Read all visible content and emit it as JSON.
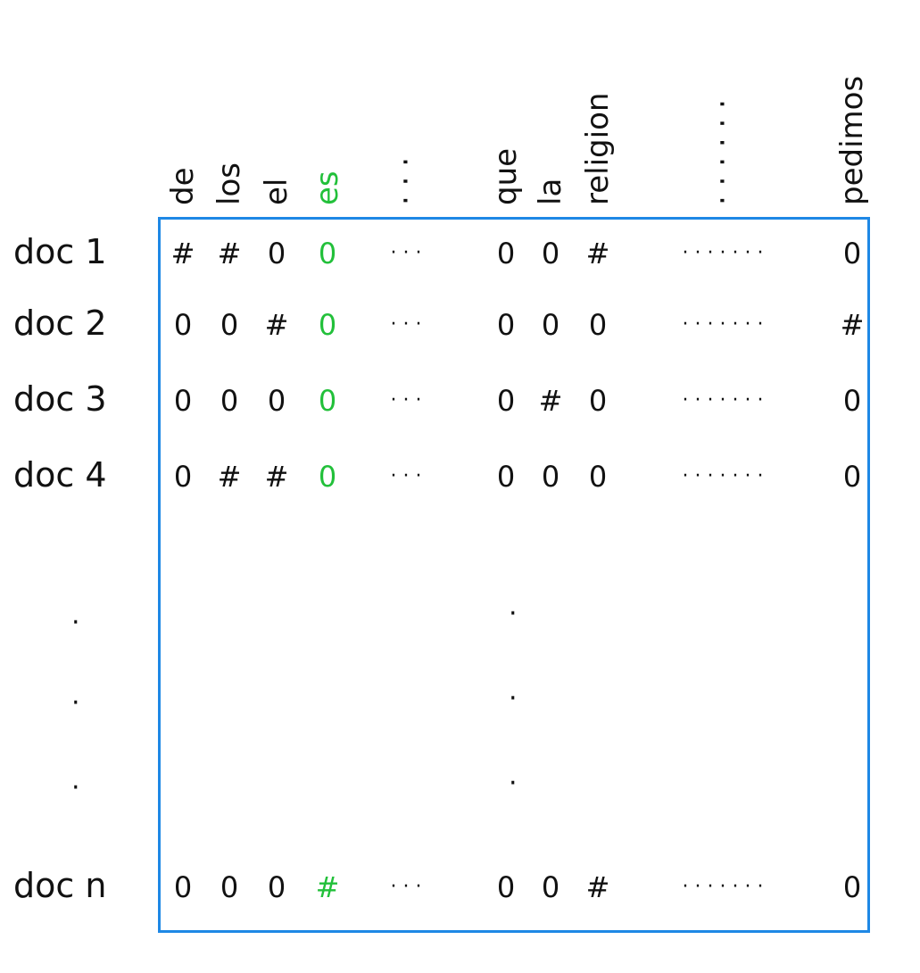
{
  "columns": [
    {
      "label": "de",
      "highlight": false
    },
    {
      "label": "los",
      "highlight": false
    },
    {
      "label": "el",
      "highlight": false
    },
    {
      "label": "es",
      "highlight": true
    },
    {
      "label": "· · ·",
      "highlight": false
    },
    {
      "label": "que",
      "highlight": false
    },
    {
      "label": "la",
      "highlight": false
    },
    {
      "label": "religion",
      "highlight": false
    },
    {
      "label": "· · · · · ·",
      "highlight": false
    },
    {
      "label": "pedimos",
      "highlight": false
    }
  ],
  "rows": [
    {
      "label": "doc 1",
      "cells": [
        "#",
        "#",
        "0",
        "0",
        "· · ·",
        "0",
        "0",
        "#",
        "· · · · · · ·",
        "0"
      ]
    },
    {
      "label": "doc 2",
      "cells": [
        "0",
        "0",
        "#",
        "0",
        "· · ·",
        "0",
        "0",
        "0",
        "· · · · · · ·",
        "#"
      ]
    },
    {
      "label": "doc 3",
      "cells": [
        "0",
        "0",
        "0",
        "0",
        "· · ·",
        "0",
        "#",
        "0",
        "· · · · · · ·",
        "0"
      ]
    },
    {
      "label": "doc 4",
      "cells": [
        "0",
        "#",
        "#",
        "0",
        "· · ·",
        "0",
        "0",
        "0",
        "· · · · · · ·",
        "0"
      ]
    },
    {
      "label": "doc n",
      "cells": [
        "0",
        "0",
        "0",
        "#",
        "· · ·",
        "0",
        "0",
        "#",
        "· · · · · · ·",
        "0"
      ]
    }
  ],
  "ellipsis": "·",
  "colors": {
    "border": "#1e88e5",
    "highlight": "#22c03a",
    "ink": "#111111"
  }
}
